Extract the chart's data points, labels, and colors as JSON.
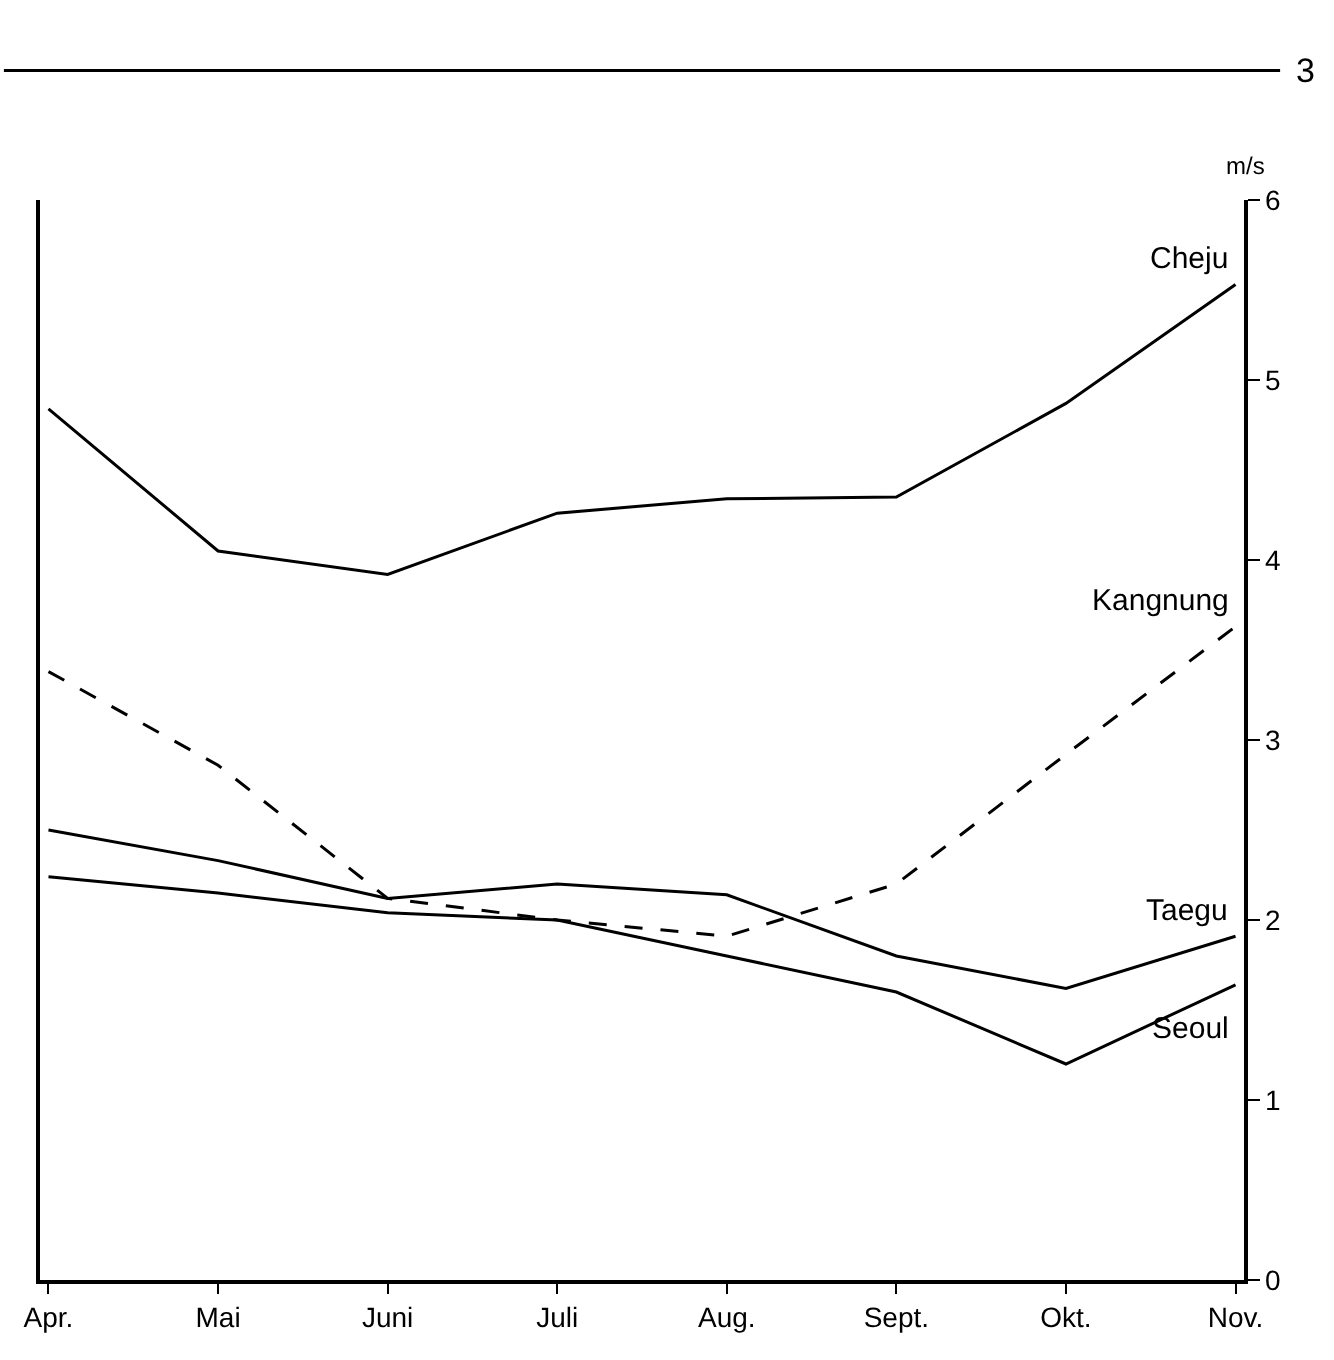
{
  "chart_data": {
    "type": "line",
    "categories": [
      "Apr.",
      "Mai",
      "Juni",
      "Juli",
      "Aug.",
      "Sept.",
      "Okt.",
      "Nov."
    ],
    "ylabel": "m/s",
    "ylim": [
      0,
      6
    ],
    "yticks": [
      0,
      1,
      2,
      3,
      4,
      5,
      6
    ],
    "grid": false,
    "legend": false,
    "marker": "none",
    "annotations": [
      "3"
    ],
    "series": [
      {
        "name": "Cheju",
        "color": "#000000",
        "line_style": "solid",
        "values": [
          4.84,
          4.05,
          3.92,
          4.26,
          4.34,
          4.35,
          4.87,
          5.53
        ]
      },
      {
        "name": "Kangnung",
        "color": "#000000",
        "line_style": "dashed",
        "values": [
          3.38,
          2.86,
          2.12,
          2.0,
          1.91,
          2.2,
          2.92,
          3.63
        ]
      },
      {
        "name": "Taegu",
        "color": "#000000",
        "line_style": "solid",
        "values": [
          2.5,
          2.33,
          2.12,
          2.2,
          2.14,
          1.8,
          1.62,
          1.91
        ]
      },
      {
        "name": "Seoul",
        "color": "#000000",
        "line_style": "solid",
        "values": [
          2.24,
          2.15,
          2.04,
          2.0,
          1.8,
          1.6,
          1.2,
          1.64
        ]
      }
    ]
  }
}
